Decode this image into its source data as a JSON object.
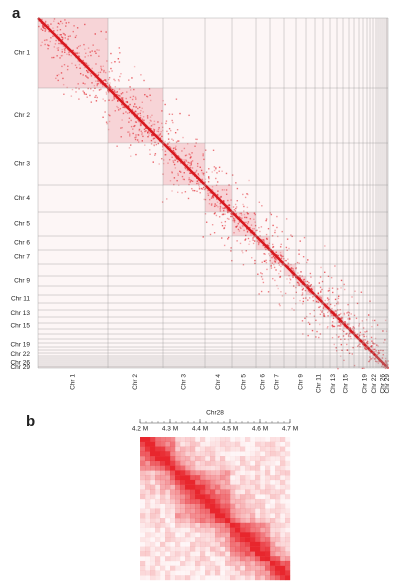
{
  "panel_labels": [
    "a",
    "b"
  ],
  "genome_map": {
    "row_labels": [
      "Chr 1",
      "Chr 2",
      "Chr 3",
      "Chr 4",
      "Chr 5",
      "Chr 6",
      "Chr 7",
      "Chr 9",
      "Chr 11",
      "Chr 13",
      "Chr 15",
      "Chr 19",
      "Chr 22",
      "Chr 26",
      "Chr 29"
    ],
    "column_labels": [
      "Chr 1",
      "Chr 2",
      "Chr 3",
      "Chr 4",
      "Chr 5",
      "Chr 6",
      "Chr 7",
      "Chr 9",
      "Chr 11",
      "Chr 13",
      "Chr 15",
      "Chr 19",
      "Chr 22",
      "Chr 26",
      "Chr 29"
    ]
  },
  "chart_data": {
    "type": "heatmap",
    "xlabel": "Chr28",
    "xlim": [
      4.2,
      4.7
    ],
    "xticks": [
      {
        "value": 4.2,
        "label": "4.2 M"
      },
      {
        "value": 4.3,
        "label": "4.3 M"
      },
      {
        "value": 4.4,
        "label": "4.4 M"
      },
      {
        "value": 4.5,
        "label": "4.5 M"
      },
      {
        "value": 4.6,
        "label": "4.6 M"
      },
      {
        "value": 4.7,
        "label": "4.7 M"
      }
    ]
  }
}
